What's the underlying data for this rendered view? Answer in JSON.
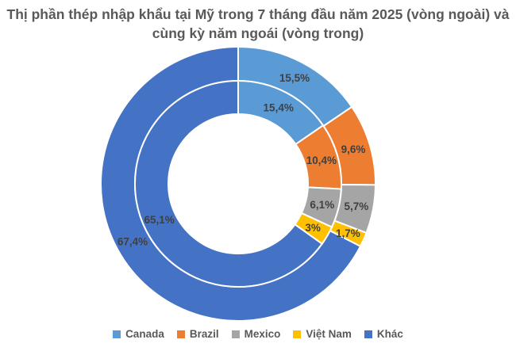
{
  "chart_data": {
    "type": "donut",
    "title_line1": "Thị phần thép nhập khẩu tại Mỹ trong 7 tháng đầu năm 2025 (vòng ngoài) và",
    "title_line2": "cùng kỳ năm ngoái (vòng trong)",
    "categories": [
      "Canada",
      "Brazil",
      "Mexico",
      "Việt Nam",
      "Khác"
    ],
    "colors": [
      "#5B9BD5",
      "#ED7D31",
      "#A5A5A5",
      "#FFC000",
      "#4472C4"
    ],
    "series": [
      {
        "ring": "outer",
        "values": [
          15.5,
          9.6,
          5.7,
          1.7,
          67.4
        ],
        "labels": [
          "15,5%",
          "9,6%",
          "5,7%",
          "1,7%",
          "67,4%"
        ]
      },
      {
        "ring": "inner",
        "values": [
          15.4,
          10.4,
          6.1,
          3.0,
          65.1
        ],
        "labels": [
          "15,4%",
          "10,4%",
          "6,1%",
          "3%",
          "65,1%"
        ]
      }
    ],
    "legend_position": "bottom"
  }
}
